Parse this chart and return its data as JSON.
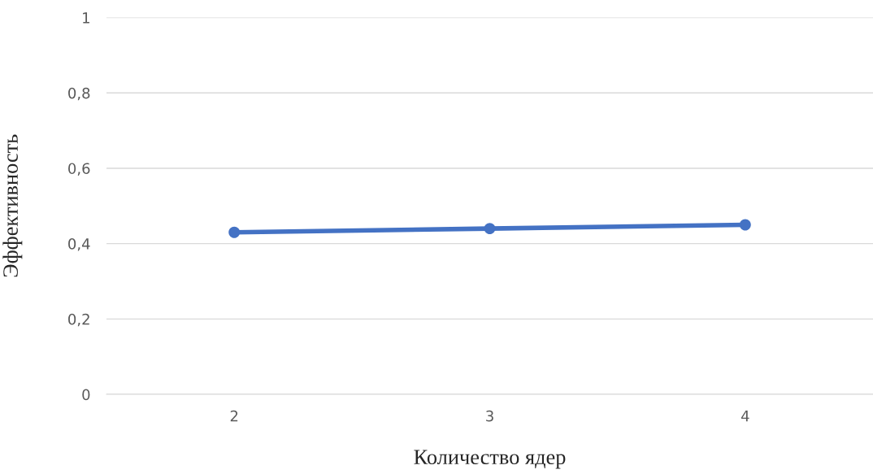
{
  "chart_data": {
    "type": "line",
    "xlabel": "Количество ядер",
    "ylabel": "Эффективность",
    "categories": [
      "2",
      "3",
      "4"
    ],
    "series": [
      {
        "color": "#4472c4",
        "values": [
          0.43,
          0.44,
          0.45
        ]
      }
    ],
    "ylim": [
      0,
      1
    ],
    "yticks": [
      0,
      {
        "value": 0.2,
        "label": "0,2"
      },
      {
        "value": 0.4,
        "label": "0,4"
      },
      {
        "value": 0.6,
        "label": "0,6"
      },
      {
        "value": 0.8,
        "label": "0,8"
      },
      1
    ],
    "grid": "y",
    "marker": "circle",
    "line_style": "solid",
    "legend": false
  }
}
